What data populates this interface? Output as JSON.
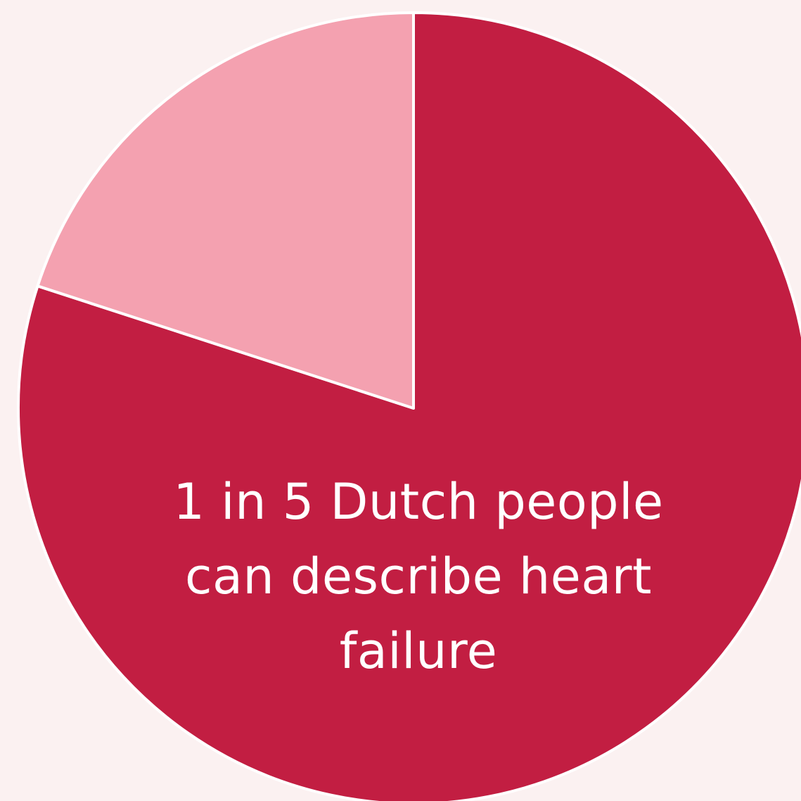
{
  "chart_data": {
    "type": "pie",
    "slices": [
      {
        "label": "",
        "value": 80,
        "color": "#c21e42"
      },
      {
        "label": "",
        "value": 20,
        "color": "#f4a1b0"
      }
    ],
    "start_angle_deg": 0,
    "direction": "clockwise",
    "annotation": "1 in 5 Dutch people can describe heart failure"
  },
  "colors": {
    "background": "#fbf1f1",
    "slice_border": "#ffffff",
    "text": "#ffffff"
  }
}
